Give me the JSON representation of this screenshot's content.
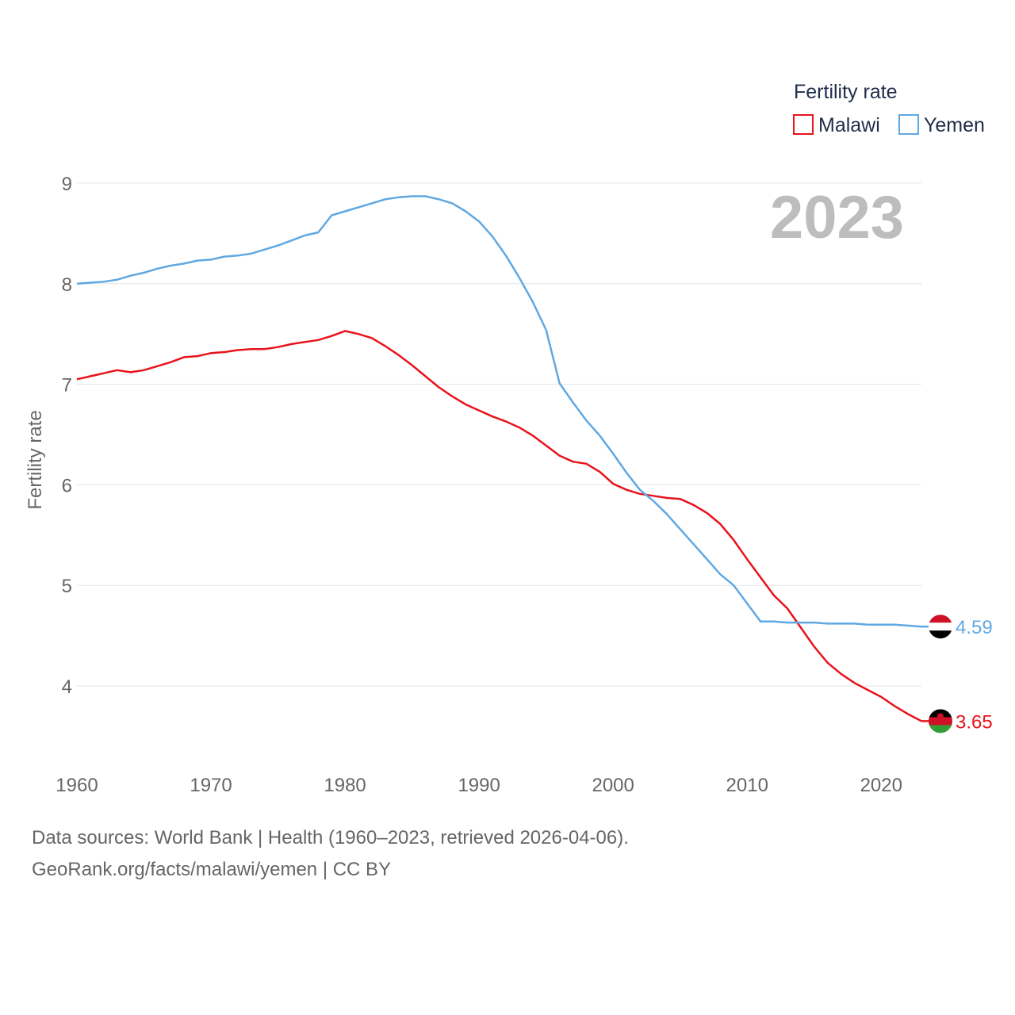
{
  "chart_data": {
    "type": "line",
    "title": "",
    "current_year_label": "2023",
    "xlabel": "",
    "ylabel": "Fertility rate",
    "xlim": [
      1960,
      2023
    ],
    "ylim": [
      3.4,
      9.3
    ],
    "x_ticks": [
      1960,
      1970,
      1980,
      1990,
      2000,
      2010,
      2020
    ],
    "y_ticks": [
      4,
      5,
      6,
      7,
      8,
      9
    ],
    "grid": true,
    "legend": {
      "title": "Fertility rate",
      "placement": "top-right",
      "items": [
        {
          "name": "Malawi",
          "color": "#e8131b"
        },
        {
          "name": "Yemen",
          "color": "#5fa8e3"
        }
      ]
    },
    "x": [
      1960,
      1961,
      1962,
      1963,
      1964,
      1965,
      1966,
      1967,
      1968,
      1969,
      1970,
      1971,
      1972,
      1973,
      1974,
      1975,
      1976,
      1977,
      1978,
      1979,
      1980,
      1981,
      1982,
      1983,
      1984,
      1985,
      1986,
      1987,
      1988,
      1989,
      1990,
      1991,
      1992,
      1993,
      1994,
      1995,
      1996,
      1997,
      1998,
      1999,
      2000,
      2001,
      2002,
      2003,
      2004,
      2005,
      2006,
      2007,
      2008,
      2009,
      2010,
      2011,
      2012,
      2013,
      2014,
      2015,
      2016,
      2017,
      2018,
      2019,
      2020,
      2021,
      2022,
      2023
    ],
    "series": [
      {
        "name": "Malawi",
        "color": "#e8131b",
        "end_label": "3.65",
        "values": [
          7.05,
          7.08,
          7.11,
          7.14,
          7.12,
          7.14,
          7.18,
          7.22,
          7.27,
          7.28,
          7.31,
          7.32,
          7.34,
          7.35,
          7.35,
          7.37,
          7.4,
          7.42,
          7.44,
          7.48,
          7.53,
          7.5,
          7.46,
          7.38,
          7.29,
          7.19,
          7.08,
          6.97,
          6.88,
          6.8,
          6.74,
          6.68,
          6.63,
          6.57,
          6.49,
          6.39,
          6.29,
          6.23,
          6.21,
          6.13,
          6.01,
          5.95,
          5.91,
          5.89,
          5.87,
          5.86,
          5.8,
          5.72,
          5.61,
          5.45,
          5.26,
          5.08,
          4.9,
          4.77,
          4.58,
          4.39,
          4.23,
          4.12,
          4.03,
          3.96,
          3.89,
          3.8,
          3.72,
          3.65
        ]
      },
      {
        "name": "Yemen",
        "color": "#5fa8e3",
        "end_label": "4.59",
        "values": [
          8.0,
          8.01,
          8.02,
          8.04,
          8.08,
          8.11,
          8.15,
          8.18,
          8.2,
          8.23,
          8.24,
          8.27,
          8.28,
          8.3,
          8.34,
          8.38,
          8.43,
          8.48,
          8.51,
          8.68,
          8.72,
          8.76,
          8.8,
          8.84,
          8.86,
          8.87,
          8.87,
          8.84,
          8.8,
          8.72,
          8.62,
          8.47,
          8.28,
          8.06,
          7.82,
          7.54,
          7.01,
          6.82,
          6.64,
          6.49,
          6.31,
          6.12,
          5.95,
          5.84,
          5.71,
          5.56,
          5.41,
          5.26,
          5.11,
          5.0,
          4.82,
          4.64,
          4.64,
          4.63,
          4.63,
          4.63,
          4.62,
          4.62,
          4.62,
          4.61,
          4.61,
          4.61,
          4.6,
          4.59
        ]
      }
    ]
  },
  "footer": {
    "line1": "Data sources: World Bank | Health (1960–2023, retrieved 2026-04-06).",
    "line2": "GeoRank.org/facts/malawi/yemen | CC BY"
  },
  "flags": {
    "yemen": {
      "name": "yemen-flag-icon",
      "colors": [
        "#ce1126",
        "#ffffff",
        "#000000"
      ]
    },
    "malawi": {
      "name": "malawi-flag-icon",
      "colors": [
        "#000000",
        "#ce1126",
        "#339e35"
      ]
    }
  }
}
